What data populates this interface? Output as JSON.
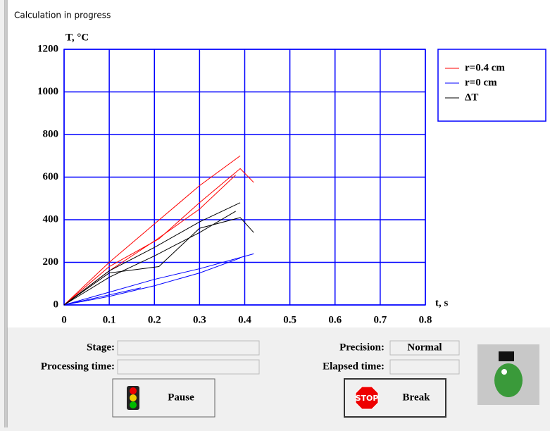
{
  "window": {
    "title": "Calculation in progress"
  },
  "chart_data": {
    "type": "line",
    "xlabel": "t, s",
    "ylabel": "T, °C",
    "xlim": [
      0,
      0.8
    ],
    "xticks": [
      0,
      0.1,
      0.2,
      0.3,
      0.4,
      0.5,
      0.6,
      0.7,
      0.8
    ],
    "ylim": [
      0,
      1200
    ],
    "yticks": [
      0,
      200,
      400,
      600,
      800,
      1000,
      1200
    ],
    "grid": true,
    "grid_color": "#0000ff",
    "legend": "right",
    "series": [
      {
        "name": "r=0.4 cm",
        "color": "#ff0000",
        "lines": [
          {
            "x": [
              0,
              0.1,
              0.2,
              0.3,
              0.39
            ],
            "values": [
              0,
              200,
              380,
              560,
              700
            ]
          },
          {
            "x": [
              0,
              0.1,
              0.21,
              0.3,
              0.39,
              0.42
            ],
            "values": [
              0,
              180,
              310,
              480,
              640,
              575
            ]
          },
          {
            "x": [
              0,
              0.1,
              0.2,
              0.3,
              0.38
            ],
            "values": [
              0,
              160,
              300,
              450,
              610
            ]
          }
        ]
      },
      {
        "name": "r=0 cm",
        "color": "#0000ff",
        "lines": [
          {
            "x": [
              0,
              0.1,
              0.2,
              0.3,
              0.42
            ],
            "values": [
              0,
              60,
              120,
              170,
              240
            ]
          },
          {
            "x": [
              0,
              0.1,
              0.2,
              0.3,
              0.39
            ],
            "values": [
              0,
              40,
              90,
              150,
              220
            ]
          },
          {
            "x": [
              0,
              0.17
            ],
            "values": [
              0,
              80
            ]
          }
        ]
      },
      {
        "name": "ΔT",
        "color": "#000000",
        "lines": [
          {
            "x": [
              0,
              0.1,
              0.2,
              0.3,
              0.39
            ],
            "values": [
              0,
              160,
              270,
              390,
              480
            ]
          },
          {
            "x": [
              0,
              0.1,
              0.21,
              0.3,
              0.39,
              0.42
            ],
            "values": [
              0,
              150,
              180,
              360,
              410,
              340
            ]
          },
          {
            "x": [
              0,
              0.1,
              0.2,
              0.3,
              0.38
            ],
            "values": [
              0,
              130,
              230,
              340,
              440
            ]
          }
        ]
      }
    ]
  },
  "form": {
    "stage": "Stage:",
    "processing_time": "Processing time:",
    "precision": "Precision:",
    "precision_value": "Normal",
    "elapsed_time": "Elapsed time:",
    "pause": "Pause",
    "break": "Break",
    "stop_sign": "STOP"
  }
}
